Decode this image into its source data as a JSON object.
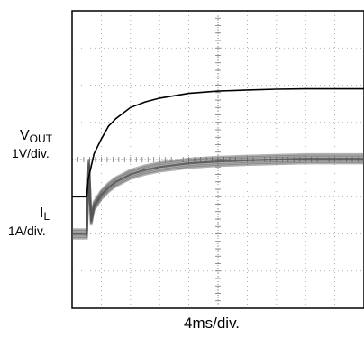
{
  "chart_data": {
    "type": "line",
    "title": "",
    "x_scale": {
      "label": "4ms/div.",
      "unit": "ms",
      "per_division": 4,
      "divisions": 10,
      "range": [
        0,
        40
      ]
    },
    "y_scale": {
      "divisions": 8,
      "grid": "dotted minor ticks",
      "grid_visible": true
    },
    "series": [
      {
        "name_main": "V",
        "name_sub": "OUT",
        "scale_label": "1V/div.",
        "color": "#000000",
        "unit": "V",
        "per_division": 1,
        "baseline_division": -1.0,
        "x": [
          0,
          2,
          2.2,
          3,
          4,
          5,
          6,
          8,
          10,
          12,
          16,
          20,
          24,
          28,
          32,
          36,
          40
        ],
        "values": [
          0,
          0,
          0.45,
          1.15,
          1.55,
          1.9,
          2.1,
          2.4,
          2.55,
          2.65,
          2.78,
          2.84,
          2.87,
          2.89,
          2.9,
          2.9,
          2.9
        ]
      },
      {
        "name_main": "I",
        "name_sub": "L",
        "scale_label": "1A/div.",
        "color": "#555555",
        "unit": "A",
        "per_division": 1,
        "baseline_division": -2.0,
        "style": "noisy band",
        "x": [
          0,
          2,
          2.3,
          2.6,
          3,
          4,
          5,
          6,
          8,
          10,
          12,
          16,
          20,
          24,
          28,
          32,
          36,
          40
        ],
        "values": [
          0,
          0,
          1.9,
          0.35,
          0.75,
          1.05,
          1.25,
          1.4,
          1.6,
          1.72,
          1.8,
          1.9,
          1.95,
          1.98,
          2.0,
          2.02,
          2.02,
          2.02
        ]
      }
    ]
  }
}
